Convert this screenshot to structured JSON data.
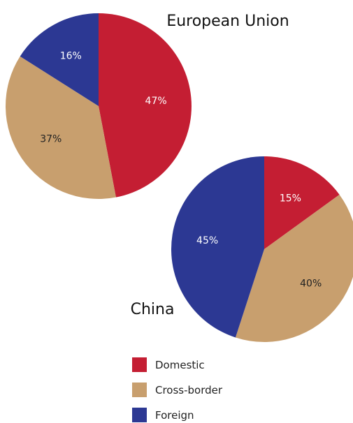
{
  "chart_data": [
    {
      "type": "pie",
      "title": "European Union",
      "categories": [
        "Domestic",
        "Cross-border",
        "Foreign"
      ],
      "values": [
        47,
        37,
        16
      ],
      "labels": [
        "47%",
        "37%",
        "16%"
      ]
    },
    {
      "type": "pie",
      "title": "China",
      "categories": [
        "Domestic",
        "Cross-border",
        "Foreign"
      ],
      "values": [
        15,
        40,
        45
      ],
      "labels": [
        "15%",
        "40%",
        "45%"
      ]
    }
  ],
  "legend": {
    "items": [
      {
        "label": "Domestic",
        "color": "#c41e33"
      },
      {
        "label": "Cross-border",
        "color": "#c89f6e"
      },
      {
        "label": "Foreign",
        "color": "#2c3893"
      }
    ]
  },
  "label_colors": {
    "Domestic": "#ffffff",
    "Cross-border": "#222222",
    "Foreign": "#ffffff"
  }
}
